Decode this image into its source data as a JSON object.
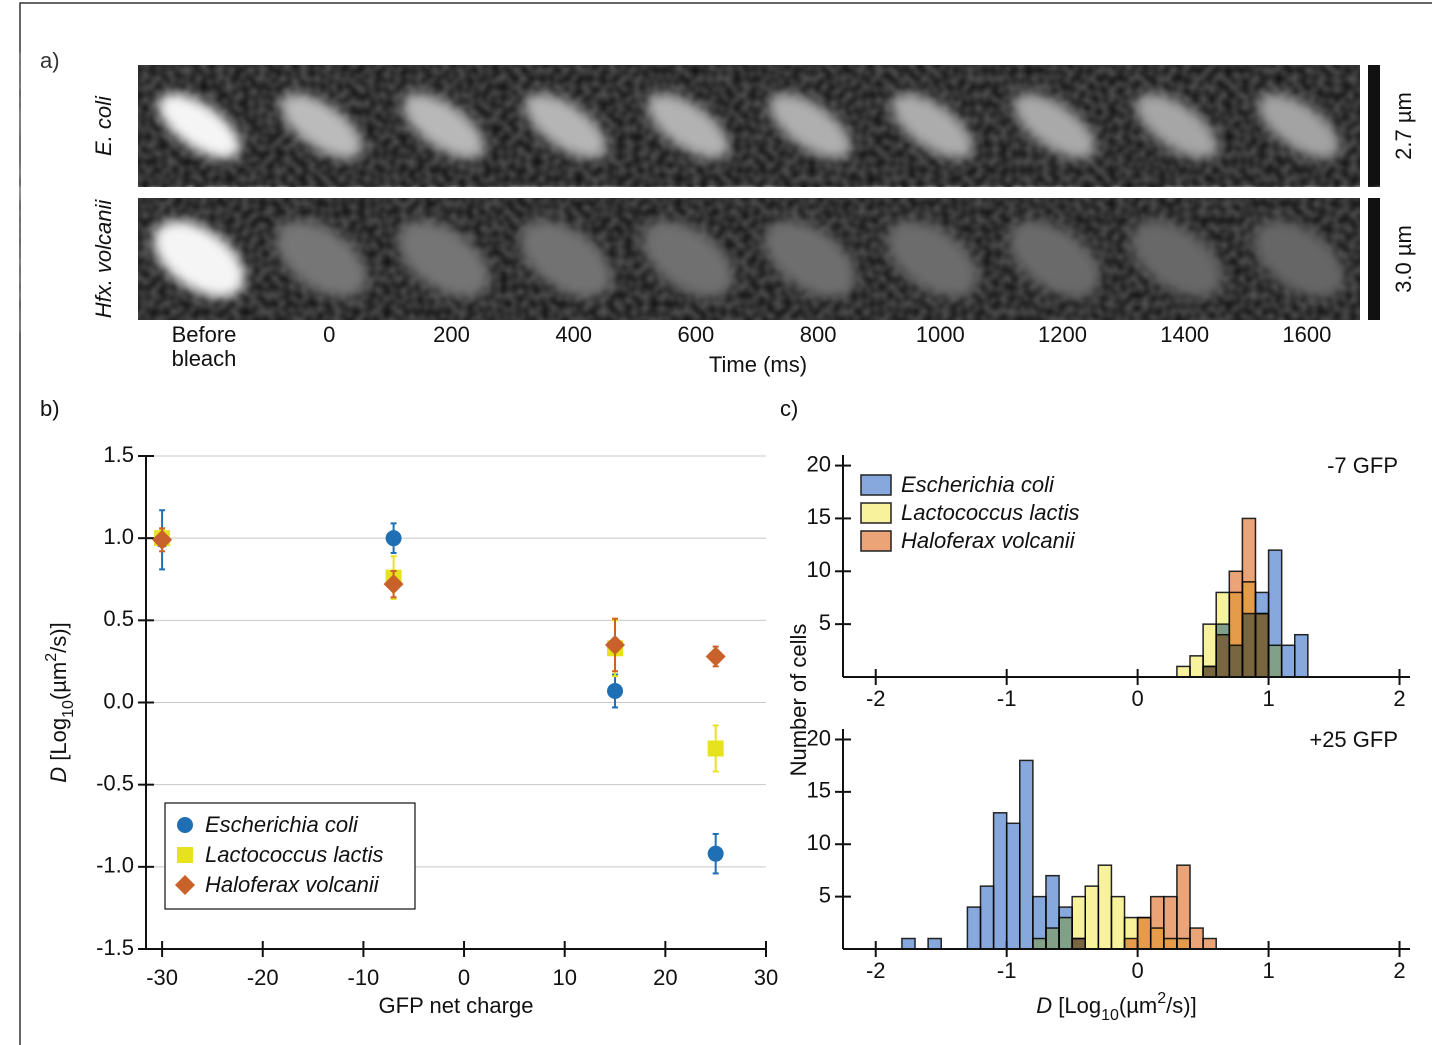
{
  "panel_a": {
    "label": "a)",
    "rows": [
      {
        "name": "E. coli",
        "scale": "2.7 µm"
      },
      {
        "name": "Hfx. volcanii",
        "scale": "3.0 µm"
      }
    ],
    "first_frame": [
      "Before",
      "bleach"
    ],
    "times": [
      0,
      200,
      400,
      600,
      800,
      1000,
      1200,
      1400,
      1600
    ],
    "x_label": "Time (ms)"
  },
  "chart_data": [
    {
      "type": "scatter",
      "panel_label": "b)",
      "x_label": "GFP net charge",
      "y_label": [
        "D",
        " [Log",
        "10",
        "(µm",
        "2",
        "/s)]"
      ],
      "xlim": [
        -31.6,
        30
      ],
      "ylim": [
        -1.5,
        1.5
      ],
      "xticks": [
        -30,
        -20,
        -10,
        0,
        10,
        20,
        30
      ],
      "yticks": [
        {
          "value": 1.5,
          "label": "1.5"
        },
        {
          "value": 1,
          "label": "1.0"
        },
        {
          "value": 0.5,
          "label": "0.5"
        },
        {
          "value": 0,
          "label": "0.0"
        },
        {
          "value": -0.5,
          "label": "-0.5"
        },
        {
          "value": -1,
          "label": "-1.0"
        },
        {
          "value": -1.5,
          "label": "-1.5"
        }
      ],
      "grid": true,
      "legend": "lower left",
      "series": [
        {
          "name": "Escherichia coli",
          "color": "#1f6fb5",
          "marker": "circle",
          "x": [
            -30,
            -7,
            15,
            25
          ],
          "values": [
            0.99,
            1.0,
            0.07,
            -0.92
          ],
          "errors": [
            0.18,
            0.09,
            0.1,
            0.12
          ]
        },
        {
          "name": "Lactococcus lactis",
          "color": "#e6e21e",
          "marker": "square",
          "x": [
            -30,
            -7,
            15,
            25
          ],
          "values": [
            1.0,
            0.76,
            0.33,
            -0.28
          ],
          "errors": [
            0.05,
            0.13,
            0.17,
            0.14
          ]
        },
        {
          "name": "Haloferax volcanii",
          "color": "#c8622a",
          "marker": "diamond",
          "x": [
            -30,
            -7,
            15,
            25
          ],
          "values": [
            0.99,
            0.72,
            0.35,
            0.28
          ],
          "errors": [
            0.07,
            0.08,
            0.16,
            0.06
          ]
        }
      ]
    },
    {
      "type": "histogram",
      "panel_label": "c)",
      "annotation": "-7 GFP",
      "y_label": "Number of cells",
      "xlim": [
        -2.25,
        2.08
      ],
      "ylim": [
        0,
        21
      ],
      "xticks": [
        -2,
        -1,
        0,
        1,
        2
      ],
      "yticks": [
        5,
        10,
        15,
        20
      ],
      "legend": "upper left",
      "bins": [
        0.3,
        0.4,
        0.5,
        0.6,
        0.7,
        0.8,
        0.9,
        1.0,
        1.1,
        1.2,
        1.3
      ],
      "series": [
        {
          "name": "Escherichia coli",
          "color": "#86a8dc",
          "values": [
            0,
            0,
            1,
            5,
            3,
            6,
            8,
            12,
            3,
            4
          ]
        },
        {
          "name": "Lactococcus lactis",
          "color": "#f8f29c",
          "values": [
            1,
            2,
            5,
            8,
            8,
            9,
            6,
            3,
            0,
            0
          ]
        },
        {
          "name": "Haloferax volcanii",
          "color": "#eba478",
          "values": [
            0,
            0,
            1,
            4,
            10,
            15,
            6,
            0,
            0,
            0
          ]
        }
      ]
    },
    {
      "type": "histogram",
      "annotation": "+25 GFP",
      "x_label": [
        "D",
        " [Log",
        "10",
        "(µm",
        "2",
        "/s)]"
      ],
      "xlim": [
        -2.25,
        2.08
      ],
      "ylim": [
        0,
        21
      ],
      "xticks": [
        -2,
        -1,
        0,
        1,
        2
      ],
      "yticks": [
        5,
        10,
        15,
        20
      ],
      "bins": [
        -1.8,
        -1.7,
        -1.6,
        -1.5,
        -1.4,
        -1.3,
        -1.2,
        -1.1,
        -1.0,
        -0.9,
        -0.8,
        -0.7,
        -0.6,
        -0.5,
        -0.4,
        -0.3,
        -0.2,
        -0.1,
        0.0,
        0.1,
        0.2,
        0.3,
        0.4,
        0.5,
        0.6
      ],
      "series": [
        {
          "color": "#86a8dc",
          "values": [
            1,
            0,
            1,
            0,
            0,
            4,
            6,
            13,
            12,
            18,
            5,
            7,
            4,
            1,
            0,
            0,
            0,
            0,
            0,
            0,
            0,
            0,
            0,
            0
          ]
        },
        {
          "color": "#f8f29c",
          "values": [
            0,
            0,
            0,
            0,
            0,
            0,
            0,
            0,
            0,
            0,
            1,
            2,
            3,
            5,
            6,
            8,
            5,
            3,
            3,
            2,
            1,
            1,
            0,
            0
          ]
        },
        {
          "color": "#eba478",
          "values": [
            0,
            0,
            0,
            0,
            0,
            0,
            0,
            0,
            0,
            0,
            0,
            0,
            0,
            1,
            0,
            0,
            0,
            1,
            3,
            5,
            5,
            8,
            2,
            1
          ]
        }
      ]
    }
  ]
}
